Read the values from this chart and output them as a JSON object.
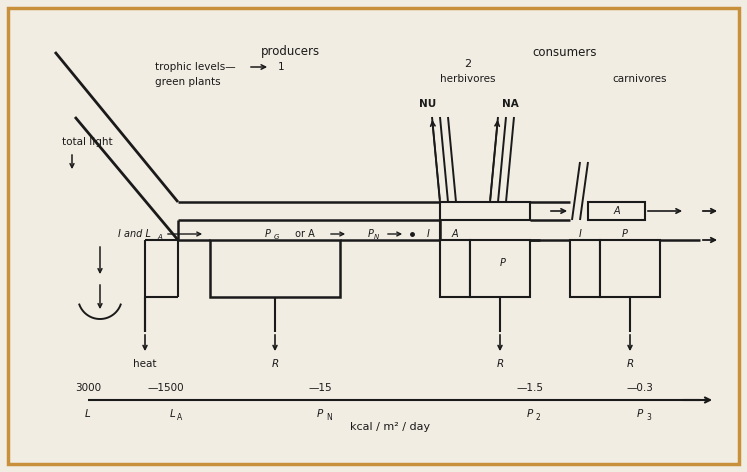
{
  "bg_color": "#f2ede3",
  "border_color": "#c8903a",
  "line_color": "#1a1a1a",
  "fig_width": 7.47,
  "fig_height": 4.72,
  "labels": {
    "producers": "producers",
    "trophic_levels": "trophic levels—",
    "trophic_1": "1",
    "green_plants": "green plants",
    "total_light": "total light",
    "i_and_la": "I and L",
    "la_sub": "A",
    "pg_or_a": "P",
    "g_sub": "G",
    "or_a": " or A",
    "pn_label": "P",
    "n_sub": "N",
    "consumers": "consumers",
    "herbivores_2": "2",
    "herbivores": "herbivores",
    "nu": "NU",
    "na": "NA",
    "carnivores": "carnivores",
    "heat": "heat",
    "R": "R",
    "I": "I",
    "A": "A",
    "P": "P",
    "scale_3000": "3000",
    "scale_dash1": "—",
    "scale_1500": "1500",
    "scale_dash2": "———————————",
    "scale_15": "15",
    "scale_dash3": "————————————————",
    "scale_1_5": "1.5",
    "scale_dash4": "———",
    "scale_0_3": "0.3",
    "L_label": "L",
    "La_label": "L",
    "Pn_label": "P",
    "P2_label": "P",
    "P3_label": "P",
    "kcal": "kcal / m² / day",
    "A_sub": "A",
    "N_sub": "N",
    "2_sub": "2",
    "3_sub": "3"
  }
}
